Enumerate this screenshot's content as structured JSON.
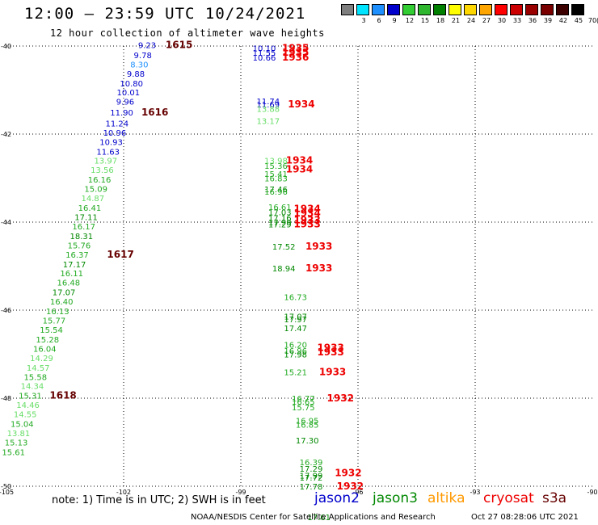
{
  "header": {
    "title": "12:00 – 23:59 UTC 10/24/2021",
    "subtitle": "12 hour collection of altimeter wave heights"
  },
  "color_scale": {
    "labels": [
      "3",
      "6",
      "9",
      "12",
      "15",
      "18",
      "21",
      "24",
      "27",
      "30",
      "33",
      "36",
      "39",
      "42",
      "45",
      "70"
    ],
    "colors": [
      "#7f7f7f",
      "#00e5ff",
      "#1e90ff",
      "#0000cd",
      "#32cd32",
      "#2fb62f",
      "#008000",
      "#ffff00",
      "#ffd700",
      "#ffa500",
      "#ff0000",
      "#cc0000",
      "#990000",
      "#7a0000",
      "#3d0000",
      "#000000"
    ],
    "unit": "(ft)"
  },
  "footer": {
    "note": "note: 1) Time is in UTC; 2) SWH is in feet",
    "credit": "NOAA/NESDIS Center for Satellite Applications and Research",
    "timestamp": "Oct 27 08:28:06 UTC 2021"
  },
  "legend": [
    {
      "name": "jason2",
      "color": "#0000cc"
    },
    {
      "name": "jason3",
      "color": "#008800"
    },
    {
      "name": "altika",
      "color": "#ff9900"
    },
    {
      "name": "cryosat",
      "color": "#ee0000"
    },
    {
      "name": "s3a",
      "color": "#660000"
    }
  ],
  "chart_data": {
    "type": "scatter",
    "title": "12:00 – 23:59 UTC 10/24/2021",
    "subtitle": "12 hour collection of altimeter wave heights",
    "xlim": [
      -105,
      -90
    ],
    "ylim": [
      -50,
      -40
    ],
    "x_ticks": [
      "-105",
      "-102",
      "-99",
      "-96",
      "-93",
      "-90"
    ],
    "y_ticks": [
      "-40",
      "-42",
      "-44",
      "-46",
      "-48",
      "-50"
    ],
    "x_tick_values": [
      -105,
      -102,
      -99,
      -96,
      -93,
      -90
    ],
    "y_tick_values": [
      -40,
      -42,
      -44,
      -46,
      -48,
      -50
    ],
    "grid": true,
    "series": [
      {
        "name": "track-a-values",
        "points": [
          {
            "x": -101.4,
            "y": -39.97,
            "v": "9.23",
            "c": "#0000cc"
          },
          {
            "x": -101.51,
            "y": -40.2,
            "v": "9.78",
            "c": "#0000cc"
          },
          {
            "x": -101.6,
            "y": -40.41,
            "v": "8.30",
            "c": "#1e90ff"
          },
          {
            "x": -101.69,
            "y": -40.62,
            "v": "9.88",
            "c": "#0000cc"
          },
          {
            "x": -101.8,
            "y": -40.84,
            "v": "10.80",
            "c": "#0000cc"
          },
          {
            "x": -101.88,
            "y": -41.05,
            "v": "10.01",
            "c": "#0000cc"
          },
          {
            "x": -101.96,
            "y": -41.26,
            "v": "9.96",
            "c": "#0000cc"
          },
          {
            "x": -102.05,
            "y": -41.5,
            "v": "11.90",
            "c": "#0000cc"
          },
          {
            "x": -102.17,
            "y": -41.75,
            "v": "11.24",
            "c": "#0000cc"
          },
          {
            "x": -102.23,
            "y": -41.96,
            "v": "10.96",
            "c": "#0000cc"
          },
          {
            "x": -102.32,
            "y": -42.17,
            "v": "10.93",
            "c": "#0000cc"
          },
          {
            "x": -102.4,
            "y": -42.39,
            "v": "11.63",
            "c": "#0000cc"
          },
          {
            "x": -102.46,
            "y": -42.6,
            "v": "13.97",
            "c": "#66dd66"
          },
          {
            "x": -102.55,
            "y": -42.81,
            "v": "13.56",
            "c": "#66dd66"
          },
          {
            "x": -102.62,
            "y": -43.03,
            "v": "16.16",
            "c": "#22aa22"
          },
          {
            "x": -102.71,
            "y": -43.24,
            "v": "15.09",
            "c": "#22aa22"
          },
          {
            "x": -102.79,
            "y": -43.45,
            "v": "14.87",
            "c": "#66dd66"
          },
          {
            "x": -102.87,
            "y": -43.67,
            "v": "16.41",
            "c": "#22aa22"
          },
          {
            "x": -102.96,
            "y": -43.88,
            "v": "17.11",
            "c": "#008800"
          },
          {
            "x": -103.02,
            "y": -44.09,
            "v": "16.17",
            "c": "#22aa22"
          },
          {
            "x": -103.08,
            "y": -44.31,
            "v": "18.31",
            "c": "#008800"
          },
          {
            "x": -103.14,
            "y": -44.52,
            "v": "15.76",
            "c": "#22aa22"
          },
          {
            "x": -103.19,
            "y": -44.73,
            "v": "16.37",
            "c": "#22aa22"
          },
          {
            "x": -103.26,
            "y": -44.95,
            "v": "17.17",
            "c": "#008800"
          },
          {
            "x": -103.33,
            "y": -45.16,
            "v": "16.11",
            "c": "#22aa22"
          },
          {
            "x": -103.41,
            "y": -45.37,
            "v": "16.48",
            "c": "#22aa22"
          },
          {
            "x": -103.53,
            "y": -45.59,
            "v": "17.07",
            "c": "#008800"
          },
          {
            "x": -103.59,
            "y": -45.8,
            "v": "16.40",
            "c": "#22aa22"
          },
          {
            "x": -103.69,
            "y": -46.02,
            "v": "16.13",
            "c": "#22aa22"
          },
          {
            "x": -103.78,
            "y": -46.23,
            "v": "15.77",
            "c": "#22aa22"
          },
          {
            "x": -103.85,
            "y": -46.44,
            "v": "15.54",
            "c": "#22aa22"
          },
          {
            "x": -103.95,
            "y": -46.66,
            "v": "15.28",
            "c": "#22aa22"
          },
          {
            "x": -104.02,
            "y": -46.87,
            "v": "16.04",
            "c": "#22aa22"
          },
          {
            "x": -104.1,
            "y": -47.08,
            "v": "14.29",
            "c": "#66dd66"
          },
          {
            "x": -104.19,
            "y": -47.3,
            "v": "14.57",
            "c": "#66dd66"
          },
          {
            "x": -104.26,
            "y": -47.51,
            "v": "15.58",
            "c": "#22aa22"
          },
          {
            "x": -104.34,
            "y": -47.72,
            "v": "14.34",
            "c": "#66dd66"
          },
          {
            "x": -104.39,
            "y": -47.94,
            "v": "15.31",
            "c": "#22aa22"
          },
          {
            "x": -104.45,
            "y": -48.15,
            "v": "14.46",
            "c": "#66dd66"
          },
          {
            "x": -104.52,
            "y": -48.36,
            "v": "14.55",
            "c": "#66dd66"
          },
          {
            "x": -104.6,
            "y": -48.58,
            "v": "15.04",
            "c": "#22aa22"
          },
          {
            "x": -104.69,
            "y": -48.79,
            "v": "13.81",
            "c": "#66dd66"
          },
          {
            "x": -104.75,
            "y": -49.0,
            "v": "15.13",
            "c": "#22aa22"
          },
          {
            "x": -104.82,
            "y": -49.22,
            "v": "15.61",
            "c": "#22aa22"
          }
        ]
      },
      {
        "name": "track-b-values",
        "points": [
          {
            "x": -98.4,
            "y": -40.05,
            "v": "10.10",
            "c": "#0000cc"
          },
          {
            "x": -98.4,
            "y": -40.15,
            "v": "11.55",
            "c": "#0000cc"
          },
          {
            "x": -98.4,
            "y": -40.26,
            "v": "10.66",
            "c": "#0000cc"
          },
          {
            "x": -98.3,
            "y": -41.25,
            "v": "11.74",
            "c": "#0000cc"
          },
          {
            "x": -98.3,
            "y": -41.32,
            "v": "11.69",
            "c": "#0000cc"
          },
          {
            "x": -98.3,
            "y": -41.42,
            "v": "13.88",
            "c": "#66dd66"
          },
          {
            "x": -98.3,
            "y": -41.7,
            "v": "13.17",
            "c": "#66dd66"
          },
          {
            "x": -98.1,
            "y": -42.6,
            "v": "13.98",
            "c": "#66dd66"
          },
          {
            "x": -98.1,
            "y": -42.72,
            "v": "15.36",
            "c": "#22aa22"
          },
          {
            "x": -98.1,
            "y": -42.9,
            "v": "15.41",
            "c": "#22aa22"
          },
          {
            "x": -98.1,
            "y": -43.0,
            "v": "16.83",
            "c": "#22aa22"
          },
          {
            "x": -98.1,
            "y": -43.25,
            "v": "17.46",
            "c": "#008800"
          },
          {
            "x": -98.1,
            "y": -43.3,
            "v": "16.96",
            "c": "#22aa22"
          },
          {
            "x": -98.0,
            "y": -43.65,
            "v": "16.61",
            "c": "#22aa22"
          },
          {
            "x": -98.0,
            "y": -43.77,
            "v": "17.03",
            "c": "#008800"
          },
          {
            "x": -98.0,
            "y": -43.9,
            "v": "17.16",
            "c": "#008800"
          },
          {
            "x": -98.0,
            "y": -44.0,
            "v": "17.99",
            "c": "#008800"
          },
          {
            "x": -98.0,
            "y": -44.05,
            "v": "17.29",
            "c": "#008800"
          },
          {
            "x": -97.9,
            "y": -44.55,
            "v": "17.52",
            "c": "#008800"
          },
          {
            "x": -97.9,
            "y": -45.05,
            "v": "18.94",
            "c": "#008800"
          },
          {
            "x": -97.6,
            "y": -45.7,
            "v": "16.73",
            "c": "#22aa22"
          },
          {
            "x": -97.6,
            "y": -46.14,
            "v": "17.07",
            "c": "#008800"
          },
          {
            "x": -97.6,
            "y": -46.2,
            "v": "17.97",
            "c": "#008800"
          },
          {
            "x": -97.6,
            "y": -46.4,
            "v": "17.47",
            "c": "#008800"
          },
          {
            "x": -97.6,
            "y": -46.78,
            "v": "16.20",
            "c": "#22aa22"
          },
          {
            "x": -97.6,
            "y": -46.92,
            "v": "16.96",
            "c": "#22aa22"
          },
          {
            "x": -97.6,
            "y": -47.0,
            "v": "17.98",
            "c": "#008800"
          },
          {
            "x": -97.6,
            "y": -47.4,
            "v": "15.21",
            "c": "#22aa22"
          },
          {
            "x": -97.4,
            "y": -48.0,
            "v": "16.77",
            "c": "#22aa22"
          },
          {
            "x": -97.4,
            "y": -48.07,
            "v": "16.65",
            "c": "#22aa22"
          },
          {
            "x": -97.4,
            "y": -48.2,
            "v": "15.75",
            "c": "#22aa22"
          },
          {
            "x": -97.3,
            "y": -48.5,
            "v": "16.95",
            "c": "#22aa22"
          },
          {
            "x": -97.3,
            "y": -48.6,
            "v": "16.85",
            "c": "#22aa22"
          },
          {
            "x": -97.3,
            "y": -48.95,
            "v": "17.30",
            "c": "#008800"
          },
          {
            "x": -97.2,
            "y": -49.45,
            "v": "16.39",
            "c": "#22aa22"
          },
          {
            "x": -97.2,
            "y": -49.6,
            "v": "17.29",
            "c": "#008800"
          },
          {
            "x": -97.2,
            "y": -49.75,
            "v": "17.99",
            "c": "#008800"
          },
          {
            "x": -97.2,
            "y": -49.8,
            "v": "17.72",
            "c": "#008800"
          },
          {
            "x": -97.2,
            "y": -50.0,
            "v": "17.78",
            "c": "#008800"
          },
          {
            "x": -97.0,
            "y": -50.7,
            "v": "17.61",
            "c": "#008800"
          }
        ]
      },
      {
        "name": "time-labels",
        "points": [
          {
            "x": -100.58,
            "y": -39.97,
            "v": "1615",
            "c": "#660000"
          },
          {
            "x": -101.2,
            "y": -41.5,
            "v": "1616",
            "c": "#660000"
          },
          {
            "x": -102.08,
            "y": -44.73,
            "v": "1617",
            "c": "#660000"
          },
          {
            "x": -103.55,
            "y": -47.94,
            "v": "1618",
            "c": "#660000"
          },
          {
            "x": -97.6,
            "y": -40.05,
            "v": "1935",
            "c": "#ee0000"
          },
          {
            "x": -97.6,
            "y": -40.15,
            "v": "1935",
            "c": "#ee0000"
          },
          {
            "x": -97.6,
            "y": -40.26,
            "v": "1936",
            "c": "#ee0000"
          },
          {
            "x": -97.45,
            "y": -41.32,
            "v": "1934",
            "c": "#ee0000"
          },
          {
            "x": -97.5,
            "y": -42.6,
            "v": "1934",
            "c": "#ee0000"
          },
          {
            "x": -97.5,
            "y": -42.8,
            "v": "1934",
            "c": "#ee0000"
          },
          {
            "x": -97.3,
            "y": -43.7,
            "v": "1934",
            "c": "#ee0000"
          },
          {
            "x": -97.3,
            "y": -43.8,
            "v": "1934",
            "c": "#ee0000"
          },
          {
            "x": -97.3,
            "y": -43.95,
            "v": "1933",
            "c": "#ee0000"
          },
          {
            "x": -97.3,
            "y": -44.05,
            "v": "1933",
            "c": "#ee0000"
          },
          {
            "x": -97.0,
            "y": -44.55,
            "v": "1933",
            "c": "#ee0000"
          },
          {
            "x": -97.0,
            "y": -45.05,
            "v": "1933",
            "c": "#ee0000"
          },
          {
            "x": -96.7,
            "y": -46.85,
            "v": "1933",
            "c": "#ee0000"
          },
          {
            "x": -96.7,
            "y": -46.95,
            "v": "1933",
            "c": "#ee0000"
          },
          {
            "x": -96.65,
            "y": -47.4,
            "v": "1933",
            "c": "#ee0000"
          },
          {
            "x": -96.45,
            "y": -48.0,
            "v": "1932",
            "c": "#ee0000"
          },
          {
            "x": -96.25,
            "y": -49.7,
            "v": "1932",
            "c": "#ee0000"
          },
          {
            "x": -96.2,
            "y": -50.0,
            "v": "1932",
            "c": "#ee0000"
          }
        ]
      }
    ]
  }
}
